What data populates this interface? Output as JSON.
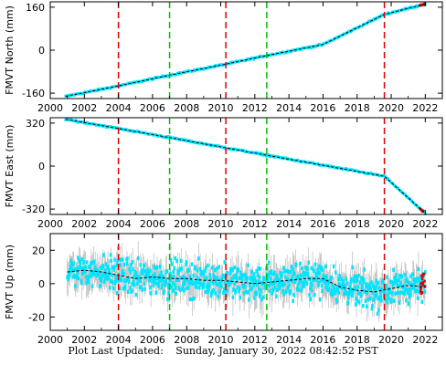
{
  "footer": {
    "label": "Plot Last Updated:",
    "value": "Sunday, January 30, 2022 08:42:52 PST"
  },
  "colors": {
    "data": "#00e5ff",
    "error_bars": "#b0b0b0",
    "fit": "#000000",
    "recent": "#e00000",
    "event_red": "#e00000",
    "event_green": "#00c000"
  },
  "chart_data": [
    {
      "type": "scatter",
      "title": "",
      "ylabel": "FMVT North (mm)",
      "xlabel": "",
      "xlim": [
        2000,
        2023
      ],
      "ylim": [
        -180,
        180
      ],
      "x_ticks": [
        "2000",
        "2002",
        "2004",
        "2006",
        "2008",
        "2010",
        "2012",
        "2014",
        "2016",
        "2018",
        "2020",
        "2022"
      ],
      "y_ticks": [
        "-160",
        "0",
        "160"
      ],
      "grid": false,
      "series": [
        {
          "x": [
            2000.9,
            2004.0,
            2007.0,
            2010.3,
            2012.7,
            2016.0,
            2019.6,
            2022.0
          ],
          "y": [
            -172,
            -133,
            -93,
            -52,
            -20,
            21,
            133,
            172
          ]
        }
      ],
      "red_lines": [
        2004.0,
        2010.3,
        2019.6
      ],
      "green_lines": [
        2007.0,
        2012.7
      ]
    },
    {
      "type": "scatter",
      "title": "",
      "ylabel": "FMVT East (mm)",
      "xlabel": "",
      "xlim": [
        2000,
        2023
      ],
      "ylim": [
        -360,
        360
      ],
      "x_ticks": [
        "2000",
        "2002",
        "2004",
        "2006",
        "2008",
        "2010",
        "2012",
        "2014",
        "2016",
        "2018",
        "2020",
        "2022"
      ],
      "y_ticks": [
        "-320",
        "0",
        "320"
      ],
      "grid": false,
      "series": [
        {
          "x": [
            2000.9,
            2004.0,
            2007.0,
            2010.3,
            2012.7,
            2016.0,
            2019.6,
            2022.0
          ],
          "y": [
            348,
            280,
            212,
            136,
            81,
            6,
            -76,
            -352
          ]
        }
      ],
      "red_lines": [
        2004.0,
        2010.3,
        2019.6
      ],
      "green_lines": [
        2007.0,
        2012.7
      ]
    },
    {
      "type": "scatter",
      "title": "",
      "ylabel": "FMVT Up (mm)",
      "xlabel": "",
      "xlim": [
        2000,
        2023
      ],
      "ylim": [
        -28,
        30
      ],
      "x_ticks": [
        "2000",
        "2002",
        "2004",
        "2006",
        "2008",
        "2010",
        "2012",
        "2014",
        "2016",
        "2018",
        "2020",
        "2022"
      ],
      "y_ticks": [
        "-20",
        "0",
        "20"
      ],
      "grid": false,
      "series": [
        {
          "x": [
            2001.0,
            2002.0,
            2003.0,
            2004.0,
            2005.0,
            2006.0,
            2007.0,
            2008.0,
            2009.0,
            2010.0,
            2011.0,
            2012.0,
            2013.0,
            2014.0,
            2015.0,
            2016.0,
            2017.0,
            2018.0,
            2019.0,
            2020.0,
            2021.0,
            2022.0
          ],
          "y": [
            7,
            8,
            7,
            5,
            3,
            4,
            3,
            3,
            2,
            2,
            1,
            0,
            1,
            2,
            3,
            3,
            -2,
            -4,
            -5,
            -3,
            -1,
            -2
          ]
        }
      ],
      "red_lines": [
        2004.0,
        2010.3,
        2019.6
      ],
      "green_lines": [
        2007.0,
        2012.7
      ]
    }
  ]
}
